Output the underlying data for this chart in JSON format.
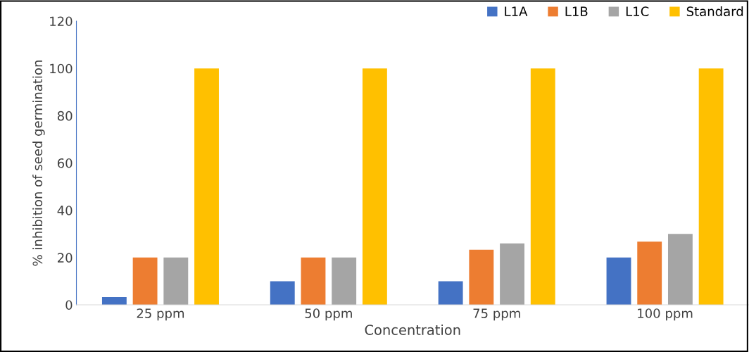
{
  "chart_data": {
    "type": "bar",
    "ylabel": "% inhibition of seed germination",
    "xlabel": "Concentration",
    "categories": [
      "25 ppm",
      "50 ppm",
      "75 ppm",
      "100 ppm"
    ],
    "series": [
      {
        "name": "L1A",
        "color": "#4472c4",
        "values": [
          3.3,
          10,
          10,
          20
        ]
      },
      {
        "name": "L1B",
        "color": "#ed7d31",
        "values": [
          20,
          20,
          23.3,
          26.7
        ]
      },
      {
        "name": "L1C",
        "color": "#a5a5a5",
        "values": [
          20,
          20,
          26,
          30
        ]
      },
      {
        "name": "Standard",
        "color": "#ffc000",
        "values": [
          100,
          100,
          100,
          100
        ]
      }
    ],
    "ylim": [
      0,
      120
    ],
    "yticks": [
      0,
      20,
      40,
      60,
      80,
      100,
      120
    ],
    "grid": false,
    "legend": "top right"
  }
}
